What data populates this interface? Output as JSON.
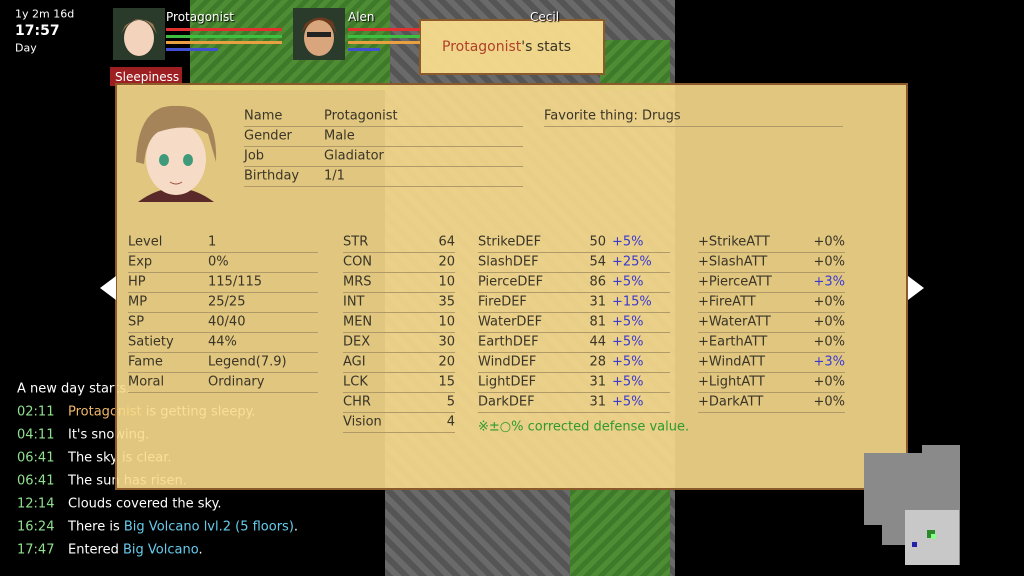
{
  "hud": {
    "date": "1y 2m 16d",
    "time": "17:57",
    "period": "Day"
  },
  "party": [
    {
      "name": "Protagonist"
    },
    {
      "name": "Alen"
    },
    {
      "name": "Cecil"
    }
  ],
  "status": "Sleepiness",
  "window_title": {
    "name": "Protagonist",
    "suffix": "'s stats"
  },
  "profile": {
    "rows": [
      [
        "Name",
        "Protagonist"
      ],
      [
        "Gender",
        "Male"
      ],
      [
        "Job",
        "Gladiator"
      ],
      [
        "Birthday",
        "1/1"
      ]
    ],
    "favorite": "Favorite thing: Drugs"
  },
  "basic": [
    [
      "Level",
      "1"
    ],
    [
      "Exp",
      "0%"
    ],
    [
      "HP",
      "115/115"
    ],
    [
      "MP",
      "25/25"
    ],
    [
      "SP",
      "40/40"
    ],
    [
      "Satiety",
      "44%"
    ],
    [
      "Fame",
      "Legend(7.9)"
    ],
    [
      "Moral",
      "Ordinary"
    ]
  ],
  "attributes": [
    [
      "STR",
      64
    ],
    [
      "CON",
      20
    ],
    [
      "MRS",
      10
    ],
    [
      "INT",
      35
    ],
    [
      "MEN",
      10
    ],
    [
      "DEX",
      30
    ],
    [
      "AGI",
      20
    ],
    [
      "LCK",
      15
    ],
    [
      "CHR",
      5
    ],
    [
      "Vision",
      4
    ]
  ],
  "defense": [
    [
      "StrikeDEF",
      50,
      "+5%"
    ],
    [
      "SlashDEF",
      54,
      "+25%"
    ],
    [
      "PierceDEF",
      86,
      "+5%"
    ],
    [
      "FireDEF",
      31,
      "+15%"
    ],
    [
      "WaterDEF",
      81,
      "+5%"
    ],
    [
      "EarthDEF",
      44,
      "+5%"
    ],
    [
      "WindDEF",
      28,
      "+5%"
    ],
    [
      "LightDEF",
      31,
      "+5%"
    ],
    [
      "DarkDEF",
      31,
      "+5%"
    ]
  ],
  "attack": [
    [
      "+StrikeATT",
      "+0%"
    ],
    [
      "+SlashATT",
      "+0%"
    ],
    [
      "+PierceATT",
      "+3%"
    ],
    [
      "+FireATT",
      "+0%"
    ],
    [
      "+WaterATT",
      "+0%"
    ],
    [
      "+EarthATT",
      "+0%"
    ],
    [
      "+WindATT",
      "+3%"
    ],
    [
      "+LightATT",
      "+0%"
    ],
    [
      "+DarkATT",
      "+0%"
    ]
  ],
  "note": "※±○% corrected defense value.",
  "log": [
    {
      "parts": [
        {
          "text": "A new day starts."
        }
      ]
    },
    {
      "time": "02:11",
      "parts": [
        {
          "text": "Protagonist",
          "kind": "name"
        },
        {
          "text": " is getting sleepy."
        }
      ]
    },
    {
      "time": "04:11",
      "parts": [
        {
          "text": "It's snowing."
        }
      ]
    },
    {
      "time": "06:41",
      "parts": [
        {
          "text": "The sky is clear."
        }
      ]
    },
    {
      "time": "06:41",
      "parts": [
        {
          "text": "The sun has risen."
        }
      ]
    },
    {
      "time": "12:14",
      "parts": [
        {
          "text": "Clouds covered the sky."
        }
      ]
    },
    {
      "time": "16:24",
      "parts": [
        {
          "text": "There is "
        },
        {
          "text": "Big Volcano lvl.2 (5 floors)",
          "kind": "place"
        },
        {
          "text": "."
        }
      ]
    },
    {
      "time": "17:47",
      "parts": [
        {
          "text": "Entered "
        },
        {
          "text": "Big Volcano",
          "kind": "place"
        },
        {
          "text": "."
        }
      ]
    }
  ]
}
